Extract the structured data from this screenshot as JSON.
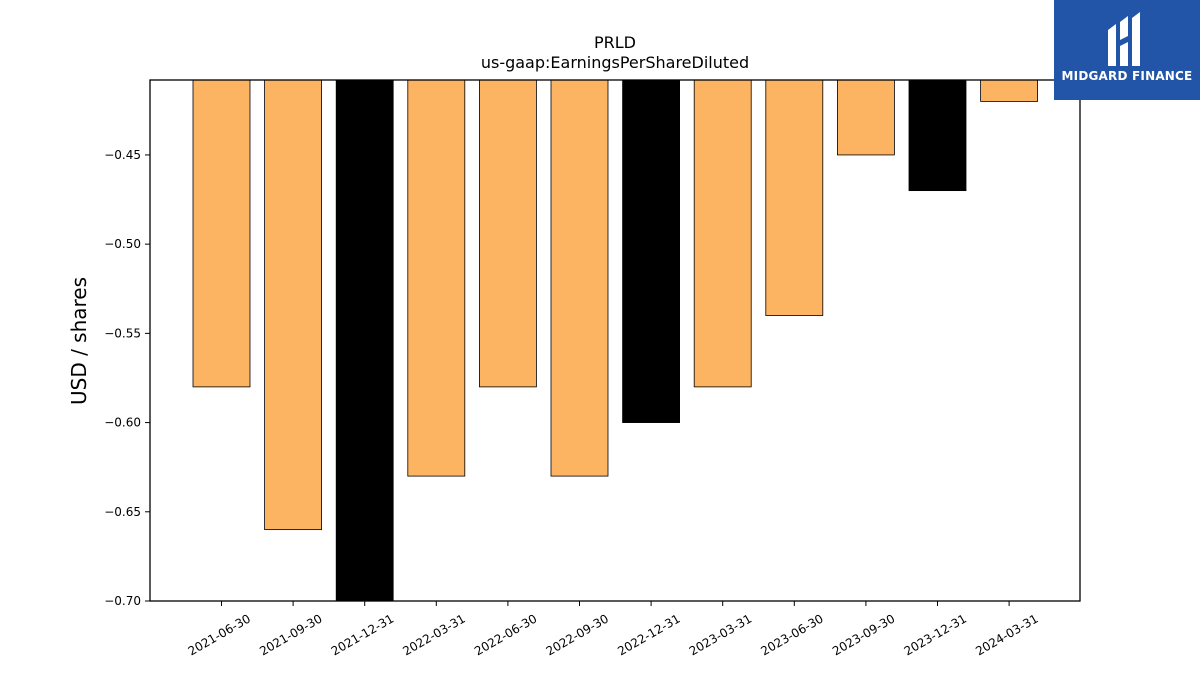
{
  "brand": {
    "name": "MIDGARD FINANCE",
    "color": "#2255a8"
  },
  "colors": {
    "positive": "#fdb462",
    "highlight": "#000000"
  },
  "chart_data": {
    "type": "bar",
    "title": "PRLD",
    "subtitle": "us-gaap:EarningsPerShareDiluted",
    "xlabel": "",
    "ylabel": "USD / shares",
    "categories": [
      "2021-06-30",
      "2021-09-30",
      "2021-12-31",
      "2022-03-31",
      "2022-06-30",
      "2022-09-30",
      "2022-12-31",
      "2023-03-31",
      "2023-06-30",
      "2023-09-30",
      "2023-12-31",
      "2024-03-31"
    ],
    "values": [
      -0.58,
      -0.66,
      -0.7,
      -0.63,
      -0.58,
      -0.63,
      -0.6,
      -0.58,
      -0.54,
      -0.45,
      -0.47,
      -0.42
    ],
    "bar_colors": [
      "#fdb462",
      "#fdb462",
      "#000000",
      "#fdb462",
      "#fdb462",
      "#fdb462",
      "#000000",
      "#fdb462",
      "#fdb462",
      "#fdb462",
      "#000000",
      "#fdb462"
    ],
    "ylim": [
      -0.7,
      -0.408
    ],
    "yticks": [
      -0.7,
      -0.65,
      -0.6,
      -0.55,
      -0.5,
      -0.45
    ],
    "ytick_labels": [
      "−0.70",
      "−0.65",
      "−0.60",
      "−0.55",
      "−0.50",
      "−0.45"
    ],
    "grid": false,
    "legend": "none"
  }
}
